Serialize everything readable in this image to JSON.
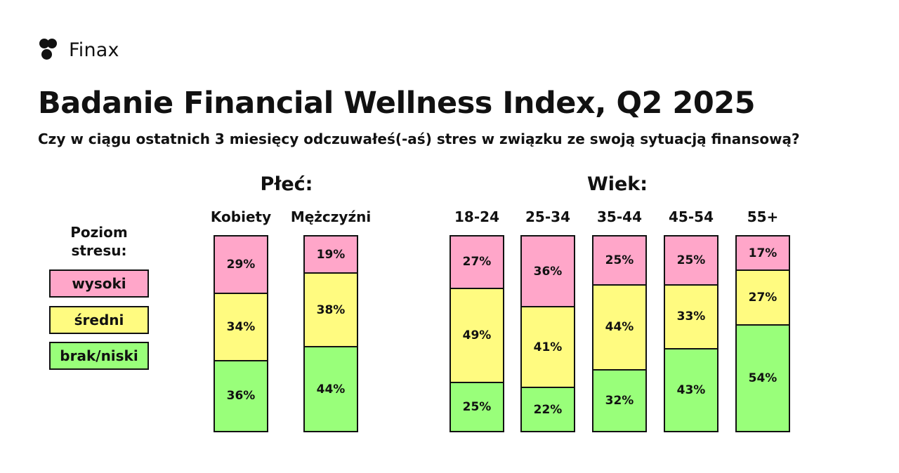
{
  "brand": {
    "name": "Finax",
    "icon": "finax-logo-dots"
  },
  "header": {
    "title": "Badanie Financial Wellness Index, Q2 2025",
    "subtitle": "Czy w ciągu ostatnich 3 miesięcy odczuwałeś(-aś) stres w związku ze swoją sytuacją finansową?"
  },
  "legend": {
    "title": "Poziom stresu:",
    "items": [
      {
        "label": "wysoki",
        "color": "#ffa6c9"
      },
      {
        "label": "średni",
        "color": "#fffb80"
      },
      {
        "label": "brak/niski",
        "color": "#99ff7a"
      }
    ]
  },
  "chart_data": {
    "type": "bar",
    "stacked": true,
    "value_unit": "%",
    "groups": [
      {
        "title": "Płeć:",
        "categories": [
          "Kobiety",
          "Mężczyźni"
        ]
      },
      {
        "title": "Wiek:",
        "categories": [
          "18-24",
          "25-34",
          "35-44",
          "45-54",
          "55+"
        ]
      }
    ],
    "categories": [
      "Kobiety",
      "Mężczyźni",
      "18-24",
      "25-34",
      "35-44",
      "45-54",
      "55+"
    ],
    "series": [
      {
        "name": "wysoki",
        "color": "#ffa6c9",
        "values": [
          29,
          19,
          27,
          36,
          25,
          25,
          17
        ]
      },
      {
        "name": "średni",
        "color": "#fffb80",
        "values": [
          34,
          38,
          49,
          41,
          44,
          33,
          27
        ]
      },
      {
        "name": "brak/niski",
        "color": "#99ff7a",
        "values": [
          36,
          44,
          25,
          22,
          32,
          43,
          54
        ]
      }
    ]
  }
}
